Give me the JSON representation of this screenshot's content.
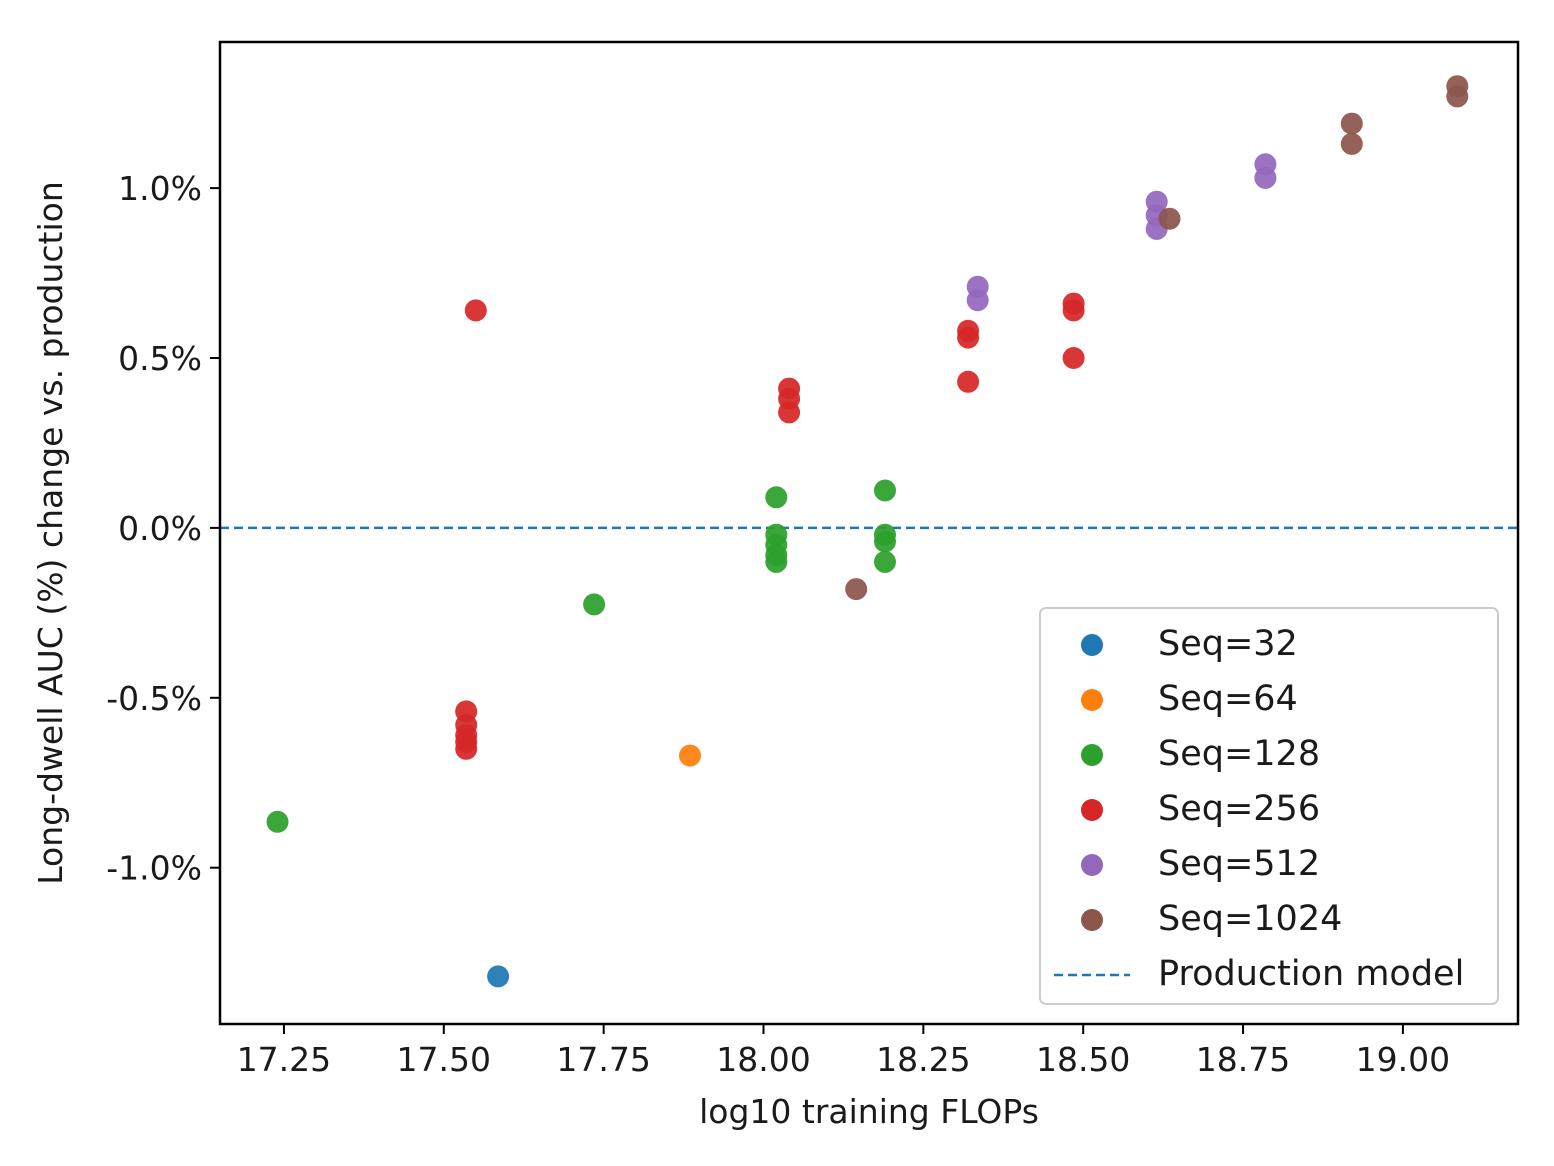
{
  "chart_data": {
    "type": "scatter",
    "title": "",
    "xlabel": "log10 training FLOPs",
    "ylabel": "Long-dwell AUC (%) change vs. production",
    "xlim": [
      17.15,
      19.18
    ],
    "ylim": [
      -1.46,
      1.43
    ],
    "xticks": [
      17.25,
      17.5,
      17.75,
      18.0,
      18.25,
      18.5,
      18.75,
      19.0
    ],
    "xtick_labels": [
      "17.25",
      "17.50",
      "17.75",
      "18.00",
      "18.25",
      "18.50",
      "18.75",
      "19.00"
    ],
    "yticks": [
      -1.0,
      -0.5,
      0.0,
      0.5,
      1.0
    ],
    "ytick_labels": [
      "-1.0%",
      "-0.5%",
      "0.0%",
      "0.5%",
      "1.0%"
    ],
    "grid": false,
    "legend_position": "lower-right",
    "reference_line": {
      "name": "Production model",
      "y": 0.0,
      "style": "dashed",
      "color": "#1f77b4"
    },
    "series": [
      {
        "name": "Seq=32",
        "color": "#1f77b4",
        "points": [
          [
            17.585,
            -1.32
          ]
        ]
      },
      {
        "name": "Seq=64",
        "color": "#ff7f0e",
        "points": [
          [
            17.885,
            -0.67
          ]
        ]
      },
      {
        "name": "Seq=128",
        "color": "#2ca02c",
        "points": [
          [
            17.24,
            -0.865
          ],
          [
            17.735,
            -0.225
          ],
          [
            18.02,
            0.09
          ],
          [
            18.02,
            -0.02
          ],
          [
            18.02,
            -0.05
          ],
          [
            18.02,
            -0.08
          ],
          [
            18.02,
            -0.1
          ],
          [
            18.19,
            0.11
          ],
          [
            18.19,
            -0.02
          ],
          [
            18.19,
            -0.04
          ],
          [
            18.19,
            -0.1
          ]
        ]
      },
      {
        "name": "Seq=256",
        "color": "#d62728",
        "points": [
          [
            17.55,
            0.64
          ],
          [
            17.535,
            -0.54
          ],
          [
            17.535,
            -0.58
          ],
          [
            17.535,
            -0.61
          ],
          [
            17.535,
            -0.63
          ],
          [
            17.535,
            -0.65
          ],
          [
            18.04,
            0.41
          ],
          [
            18.04,
            0.38
          ],
          [
            18.04,
            0.34
          ],
          [
            18.32,
            0.58
          ],
          [
            18.32,
            0.56
          ],
          [
            18.32,
            0.43
          ],
          [
            18.485,
            0.66
          ],
          [
            18.485,
            0.64
          ],
          [
            18.485,
            0.5
          ]
        ]
      },
      {
        "name": "Seq=512",
        "color": "#9467bd",
        "points": [
          [
            18.335,
            0.71
          ],
          [
            18.335,
            0.67
          ],
          [
            18.615,
            0.96
          ],
          [
            18.615,
            0.92
          ],
          [
            18.615,
            0.88
          ],
          [
            18.785,
            1.07
          ],
          [
            18.785,
            1.03
          ]
        ]
      },
      {
        "name": "Seq=1024",
        "color": "#8c564b",
        "points": [
          [
            18.145,
            -0.18
          ],
          [
            18.635,
            0.91
          ],
          [
            18.92,
            1.19
          ],
          [
            18.92,
            1.13
          ],
          [
            19.085,
            1.3
          ],
          [
            19.085,
            1.27
          ]
        ]
      }
    ]
  }
}
